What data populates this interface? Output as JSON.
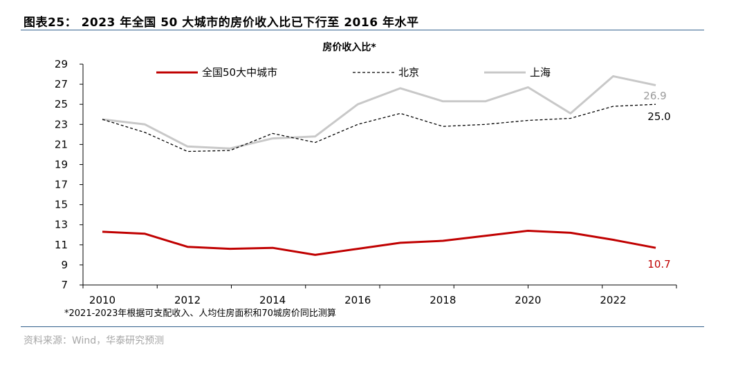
{
  "figure": {
    "title": "图表25： 2023 年全国 50 大城市的房价收入比已下行至 2016 年水平",
    "source": "资料来源：Wind，华泰研究预测"
  },
  "colors": {
    "national": "#c00000",
    "beijing": "#000000",
    "shanghai": "#c8c8c8",
    "rule": "#2f5d8a"
  },
  "chart_data": {
    "type": "line",
    "title": "房价收入比*",
    "footnote": "*2021-2023年根据可支配收入、人均住房面积和70城房价同比测算",
    "xlabel": "",
    "ylabel": "",
    "x": [
      2010,
      2011,
      2012,
      2013,
      2014,
      2015,
      2016,
      2017,
      2018,
      2019,
      2020,
      2021,
      2022,
      2023
    ],
    "x_ticks": [
      "2010",
      "2012",
      "2014",
      "2016",
      "2018",
      "2020",
      "2022"
    ],
    "y_ticks": [
      "7",
      "9",
      "11",
      "13",
      "15",
      "17",
      "19",
      "21",
      "23",
      "25",
      "27",
      "29"
    ],
    "ylim": [
      7,
      29
    ],
    "grid": false,
    "legend_position": "top",
    "series": [
      {
        "name": "全国50大中城市",
        "style": "solid",
        "color": "#c00000",
        "values": [
          12.3,
          12.1,
          10.8,
          10.6,
          10.7,
          10.0,
          10.6,
          11.2,
          11.4,
          11.9,
          12.4,
          12.2,
          11.5,
          10.7
        ],
        "end_label": "10.7"
      },
      {
        "name": "北京",
        "style": "dashed",
        "color": "#000000",
        "values": [
          23.5,
          22.2,
          20.3,
          20.4,
          22.1,
          21.2,
          23.0,
          24.1,
          22.8,
          23.0,
          23.4,
          23.6,
          24.8,
          25.0
        ],
        "end_label": "25.0"
      },
      {
        "name": "上海",
        "style": "solid",
        "color": "#c8c8c8",
        "values": [
          23.5,
          23.0,
          20.8,
          20.6,
          21.6,
          21.8,
          25.0,
          26.6,
          25.3,
          25.3,
          26.7,
          24.1,
          27.8,
          26.9
        ],
        "end_label": "26.9"
      }
    ]
  }
}
